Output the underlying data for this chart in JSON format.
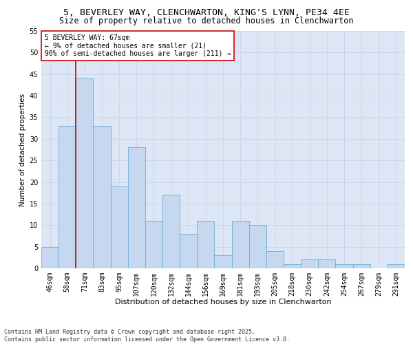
{
  "title1": "5, BEVERLEY WAY, CLENCHWARTON, KING'S LYNN, PE34 4EE",
  "title2": "Size of property relative to detached houses in Clenchwarton",
  "xlabel": "Distribution of detached houses by size in Clenchwarton",
  "ylabel": "Number of detached properties",
  "categories": [
    "46sqm",
    "58sqm",
    "71sqm",
    "83sqm",
    "95sqm",
    "107sqm",
    "120sqm",
    "132sqm",
    "144sqm",
    "156sqm",
    "169sqm",
    "181sqm",
    "193sqm",
    "205sqm",
    "218sqm",
    "230sqm",
    "242sqm",
    "254sqm",
    "267sqm",
    "279sqm",
    "291sqm"
  ],
  "values": [
    5,
    33,
    44,
    33,
    19,
    28,
    11,
    17,
    8,
    11,
    3,
    11,
    10,
    4,
    1,
    2,
    2,
    1,
    1,
    0,
    1
  ],
  "bar_color": "#c5d8f0",
  "bar_edge_color": "#6aaed6",
  "vline_x_idx": 2,
  "vline_color": "#cc0000",
  "annotation_text": "5 BEVERLEY WAY: 67sqm\n← 9% of detached houses are smaller (21)\n90% of semi-detached houses are larger (211) →",
  "annotation_box_color": "#ffffff",
  "annotation_box_edge": "#cc0000",
  "ylim": [
    0,
    55
  ],
  "yticks": [
    0,
    5,
    10,
    15,
    20,
    25,
    30,
    35,
    40,
    45,
    50,
    55
  ],
  "grid_color": "#c8d4e8",
  "bg_color": "#dce6f5",
  "fig_bg_color": "#ffffff",
  "footer_text": "Contains HM Land Registry data © Crown copyright and database right 2025.\nContains public sector information licensed under the Open Government Licence v3.0.",
  "title1_fontsize": 9.5,
  "title2_fontsize": 8.5,
  "xlabel_fontsize": 8,
  "ylabel_fontsize": 7.5,
  "tick_fontsize": 7,
  "annotation_fontsize": 7,
  "footer_fontsize": 6
}
